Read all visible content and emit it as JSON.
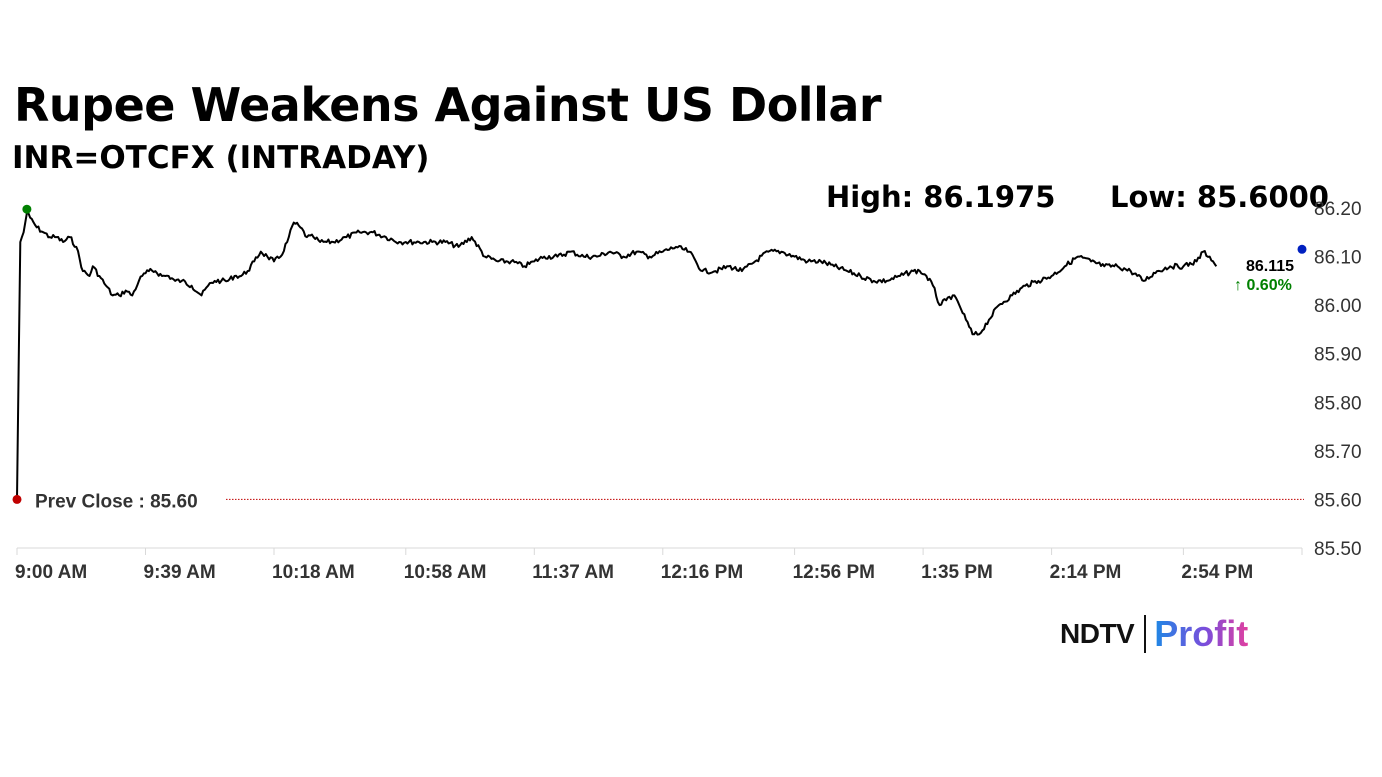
{
  "header": {
    "title": "Rupee Weakens Against US Dollar",
    "subtitle": "INR=OTCFX (INTRADAY)",
    "high_label": "High: 86.1975",
    "low_label": "Low: 85.6000"
  },
  "branding": {
    "ndtv": "NDTV",
    "profit": "Profit"
  },
  "colors": {
    "line": "#000000",
    "prev_close": "#c00000",
    "high_marker": "#008000",
    "last_marker": "#0020c0",
    "change_up": "#008000",
    "axis": "#d9d9d9",
    "tick_text": "#333333"
  },
  "chart_data": {
    "type": "line",
    "title": "Rupee Weakens Against US Dollar",
    "subtitle": "INR=OTCFX (INTRADAY)",
    "ylim": [
      85.5,
      86.2
    ],
    "y_ticks": [
      "86.20",
      "86.10",
      "86.00",
      "85.90",
      "85.80",
      "85.70",
      "85.60",
      "85.50"
    ],
    "x_ticks": [
      "9:00 AM",
      "9:39 AM",
      "10:18 AM",
      "10:58 AM",
      "11:37 AM",
      "12:16 PM",
      "12:56 PM",
      "1:35 PM",
      "2:14 PM",
      "2:54 PM"
    ],
    "x_tick_minutes": [
      540,
      579,
      618,
      658,
      697,
      736,
      776,
      815,
      854,
      894
    ],
    "xlim_minutes": [
      540,
      930
    ],
    "prev_close": 85.6,
    "prev_close_label": "Prev Close : 85.60",
    "last_value_label": "86.115",
    "change_label": "↑ 0.60%",
    "series": [
      {
        "x": [
          540,
          541,
          542,
          543,
          544,
          546,
          548,
          550,
          552,
          554,
          556,
          558,
          560,
          562,
          563,
          565,
          567,
          569,
          571,
          573,
          575,
          577,
          578,
          580,
          582,
          584,
          586,
          588,
          590,
          593,
          596,
          598,
          600,
          602,
          604,
          606,
          608,
          610,
          612,
          614,
          616,
          618,
          620,
          622,
          624,
          626,
          628,
          630,
          632,
          634,
          636,
          640,
          644,
          648,
          652,
          656,
          658,
          662,
          666,
          670,
          674,
          678,
          682,
          686,
          690,
          694,
          697,
          700,
          704,
          708,
          712,
          716,
          720,
          724,
          728,
          732,
          736,
          740,
          744,
          748,
          752,
          756,
          760,
          764,
          768,
          772,
          776,
          780,
          784,
          788,
          792,
          796,
          800,
          804,
          808,
          812,
          814,
          816,
          818,
          820,
          822,
          824,
          826,
          828,
          830,
          832,
          835,
          838,
          842,
          846,
          850,
          854,
          858,
          862,
          866,
          870,
          874,
          878,
          882,
          886,
          890,
          894,
          898,
          900,
          902,
          904
        ],
        "y": [
          85.6,
          86.13,
          86.15,
          86.19,
          86.18,
          86.16,
          86.15,
          86.14,
          86.14,
          86.13,
          86.14,
          86.12,
          86.07,
          86.06,
          86.08,
          86.06,
          86.04,
          86.02,
          86.02,
          86.03,
          86.02,
          86.05,
          86.06,
          86.07,
          86.07,
          86.06,
          86.06,
          86.05,
          86.05,
          86.04,
          86.02,
          86.04,
          86.05,
          86.05,
          86.05,
          86.06,
          86.06,
          86.07,
          86.09,
          86.11,
          86.1,
          86.09,
          86.1,
          86.13,
          86.17,
          86.16,
          86.14,
          86.14,
          86.13,
          86.13,
          86.13,
          86.14,
          86.15,
          86.15,
          86.14,
          86.13,
          86.13,
          86.13,
          86.13,
          86.13,
          86.12,
          86.14,
          86.1,
          86.09,
          86.09,
          86.08,
          86.09,
          86.1,
          86.1,
          86.11,
          86.1,
          86.1,
          86.11,
          86.1,
          86.11,
          86.1,
          86.11,
          86.12,
          86.11,
          86.07,
          86.07,
          86.08,
          86.07,
          86.09,
          86.11,
          86.11,
          86.1,
          86.09,
          86.09,
          86.08,
          86.07,
          86.06,
          86.05,
          86.05,
          86.06,
          86.07,
          86.07,
          86.06,
          86.04,
          86.0,
          86.01,
          86.02,
          86.0,
          85.97,
          85.94,
          85.94,
          85.97,
          86.0,
          86.02,
          86.04,
          86.05,
          86.06,
          86.08,
          86.1,
          86.09,
          86.08,
          86.08,
          86.07,
          86.05,
          86.07,
          86.08,
          86.08,
          86.09,
          86.11,
          86.1,
          86.08
        ]
      }
    ],
    "markers": [
      {
        "kind": "prev-close",
        "x": 540,
        "y": 85.6
      },
      {
        "kind": "high",
        "x": 543,
        "y": 86.1975
      },
      {
        "kind": "last",
        "x": 930,
        "y": 86.115
      }
    ]
  }
}
